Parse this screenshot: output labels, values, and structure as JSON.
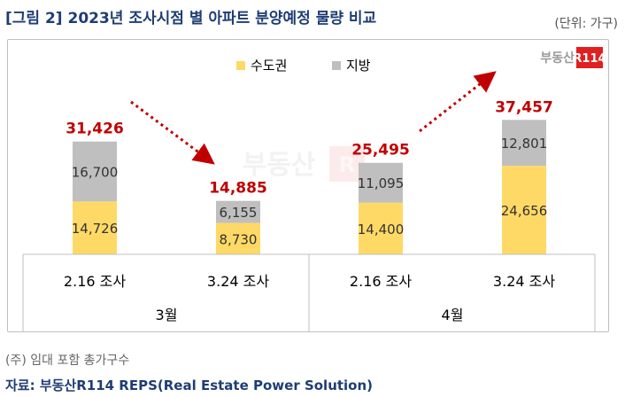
{
  "header": {
    "title": "[그림 2] 2023년 조사시점 별 아파트 분양예정 물량 비교",
    "unit": "(단위: 가구)"
  },
  "logo": {
    "text": "부동산",
    "badge": "R114"
  },
  "chart_data": {
    "type": "bar",
    "stacked": true,
    "categories": [
      "2.16 조사",
      "3.24 조사",
      "2.16 조사",
      "3.24 조사"
    ],
    "groups": [
      {
        "label": "3월",
        "categories": [
          0,
          1
        ]
      },
      {
        "label": "4월",
        "categories": [
          2,
          3
        ]
      }
    ],
    "series": [
      {
        "name": "수도권",
        "values": [
          14726,
          8730,
          14400,
          24656
        ],
        "color": "#ffd966"
      },
      {
        "name": "지방",
        "values": [
          16700,
          6155,
          11095,
          12801
        ],
        "color": "#bfbfbf"
      }
    ],
    "totals": [
      31426,
      14885,
      25495,
      37457
    ],
    "value_labels": {
      "수도권": [
        "14,726",
        "8,730",
        "14,400",
        "24,656"
      ],
      "지방": [
        "16,700",
        "6,155",
        "11,095",
        "12,801"
      ],
      "totals": [
        "31,426",
        "14,885",
        "25,495",
        "37,457"
      ]
    },
    "total_color": "#c00000",
    "legend_position": "top"
  },
  "footer": {
    "note": "(주) 임대 포함 총가구수",
    "source": "자료: 부동산R114 REPS(Real Estate Power Solution)"
  }
}
